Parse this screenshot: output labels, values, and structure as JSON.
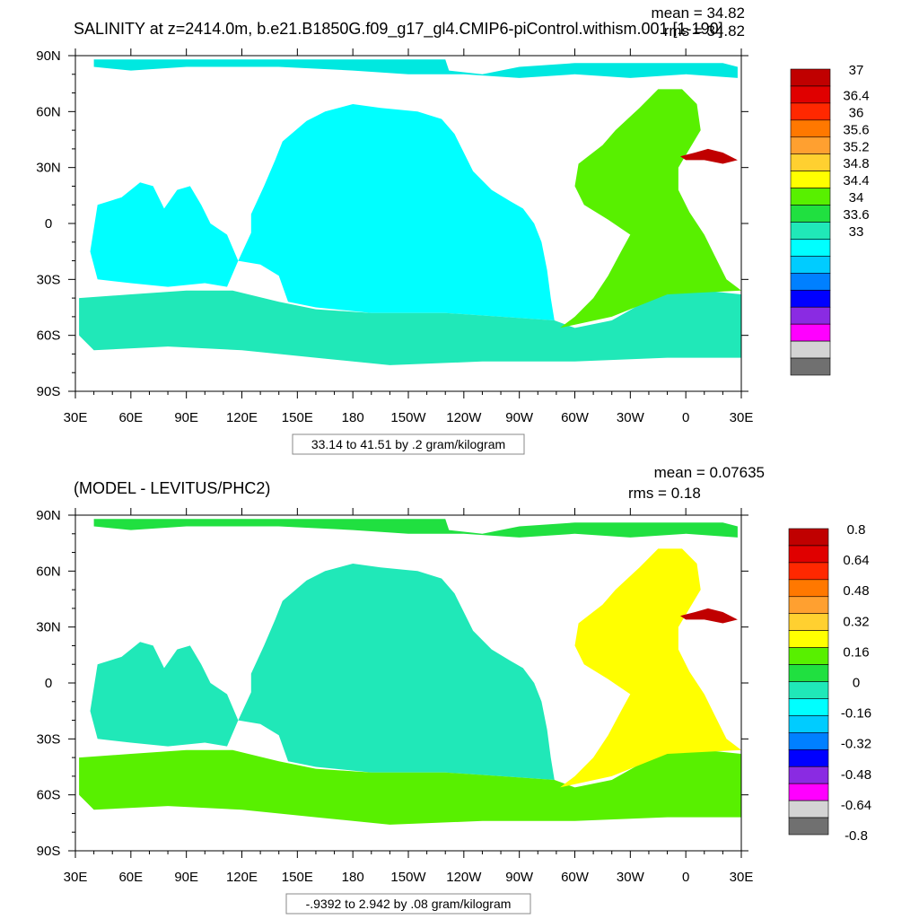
{
  "chart_data": [
    {
      "type": "heatmap",
      "title": "SALINITY at z=2414.0m, b.e21.B1850G.f09_g17_gl4.CMIP6-piControl.withism.001 [1-190]",
      "stats": {
        "mean": "mean = 34.82",
        "rms": "rms = 34.82"
      },
      "x_ticks": [
        "30E",
        "60E",
        "90E",
        "120E",
        "150E",
        "180",
        "150W",
        "120W",
        "90W",
        "60W",
        "30W",
        "0",
        "30E"
      ],
      "y_ticks": [
        "90N",
        "60N",
        "30N",
        "0",
        "30S",
        "60S",
        "90S"
      ],
      "xlim": [
        30,
        390
      ],
      "ylim": [
        -90,
        90
      ],
      "contour_info": "33.14 to 41.51 by .2 gram/kilogram",
      "colorbar": {
        "labels": [
          "37",
          "36.4",
          "36",
          "35.6",
          "35.2",
          "34.8",
          "34.4",
          "34",
          "33.6",
          "33"
        ],
        "colors": [
          "#c00000",
          "#e00000",
          "#ff2800",
          "#ff7800",
          "#ffa030",
          "#ffd030",
          "#ffff00",
          "#58f000",
          "#20e040",
          "#20e8b8",
          "#00ffff",
          "#00ccff",
          "#0080ff",
          "#0000ff",
          "#8a2be2",
          "#ff00ff",
          "#d4d4d4",
          "#707070"
        ]
      },
      "regions": [
        {
          "name": "arctic",
          "level": "#00e8e0"
        },
        {
          "name": "indian-ocean",
          "level": "#00ffff"
        },
        {
          "name": "pacific",
          "level": "#00ffff"
        },
        {
          "name": "southern-ocean",
          "level": "#20e8b8"
        },
        {
          "name": "atlantic",
          "level": "#58f000"
        },
        {
          "name": "mediterranean",
          "level": "#c00000"
        }
      ]
    },
    {
      "type": "heatmap",
      "title": "(MODEL - LEVITUS/PHC2)",
      "stats": {
        "mean": "mean = 0.07635",
        "rms": "rms = 0.18"
      },
      "x_ticks": [
        "30E",
        "60E",
        "90E",
        "120E",
        "150E",
        "180",
        "150W",
        "120W",
        "90W",
        "60W",
        "30W",
        "0",
        "30E"
      ],
      "y_ticks": [
        "90N",
        "60N",
        "30N",
        "0",
        "30S",
        "60S",
        "90S"
      ],
      "xlim": [
        30,
        390
      ],
      "ylim": [
        -90,
        90
      ],
      "contour_info": "-.9392 to 2.942 by .08 gram/kilogram",
      "colorbar": {
        "labels": [
          "0.8",
          "0.64",
          "0.48",
          "0.32",
          "0.16",
          "0",
          "-0.16",
          "-0.32",
          "-0.48",
          "-0.64",
          "-0.8"
        ],
        "colors": [
          "#c00000",
          "#e00000",
          "#ff2800",
          "#ff7800",
          "#ffa030",
          "#ffd030",
          "#ffff00",
          "#58f000",
          "#20e040",
          "#20e8b8",
          "#00ffff",
          "#00ccff",
          "#0080ff",
          "#0000ff",
          "#8a2be2",
          "#ff00ff",
          "#d4d4d4",
          "#707070"
        ]
      },
      "regions": [
        {
          "name": "arctic",
          "level": "#20e040"
        },
        {
          "name": "indian-ocean",
          "level": "#20e8b8"
        },
        {
          "name": "pacific",
          "level": "#20e8b8"
        },
        {
          "name": "southern-ocean",
          "level": "#58f000"
        },
        {
          "name": "atlantic",
          "level": "#ffff00"
        },
        {
          "name": "mediterranean",
          "level": "#c00000"
        }
      ]
    }
  ]
}
